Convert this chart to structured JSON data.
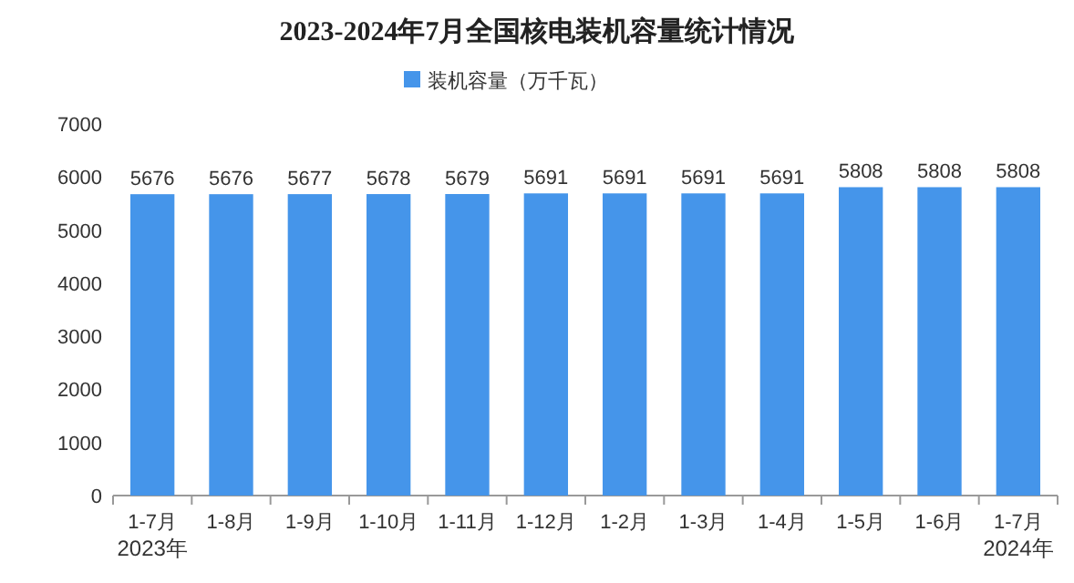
{
  "chart_data": {
    "type": "bar",
    "title": "2023-2024年7月全国核电装机容量统计情况",
    "categories": [
      "1-7月",
      "1-8月",
      "1-9月",
      "1-10月",
      "1-11月",
      "1-12月",
      "1-2月",
      "1-3月",
      "1-4月",
      "1-5月",
      "1-6月",
      "1-7月"
    ],
    "series": [
      {
        "name": "装机容量（万千瓦）",
        "color": "#4595ea",
        "values": [
          5676,
          5676,
          5677,
          5678,
          5679,
          5691,
          5691,
          5691,
          5691,
          5808,
          5808,
          5808
        ]
      }
    ],
    "data_labels": true,
    "ylim": [
      0,
      7000
    ],
    "yticks": [
      0,
      1000,
      2000,
      3000,
      4000,
      5000,
      6000,
      7000
    ],
    "grid": false,
    "legend": "top",
    "annotations": [
      "2023年",
      "2024年"
    ]
  }
}
